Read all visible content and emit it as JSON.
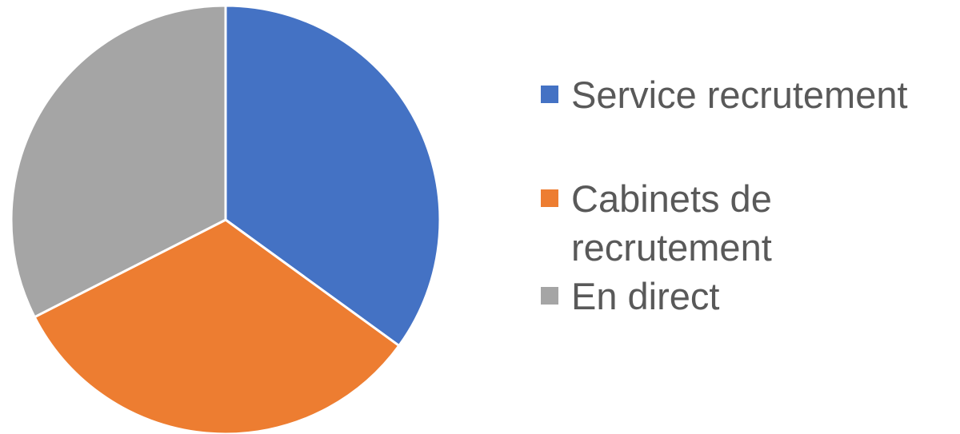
{
  "chart_data": {
    "type": "pie",
    "categories": [
      "Service recrutement",
      "Cabinets de recrutement",
      "En direct"
    ],
    "values": [
      35,
      32.5,
      32.5
    ],
    "colors": [
      "#4472c4",
      "#ed7d31",
      "#a5a5a5"
    ]
  }
}
